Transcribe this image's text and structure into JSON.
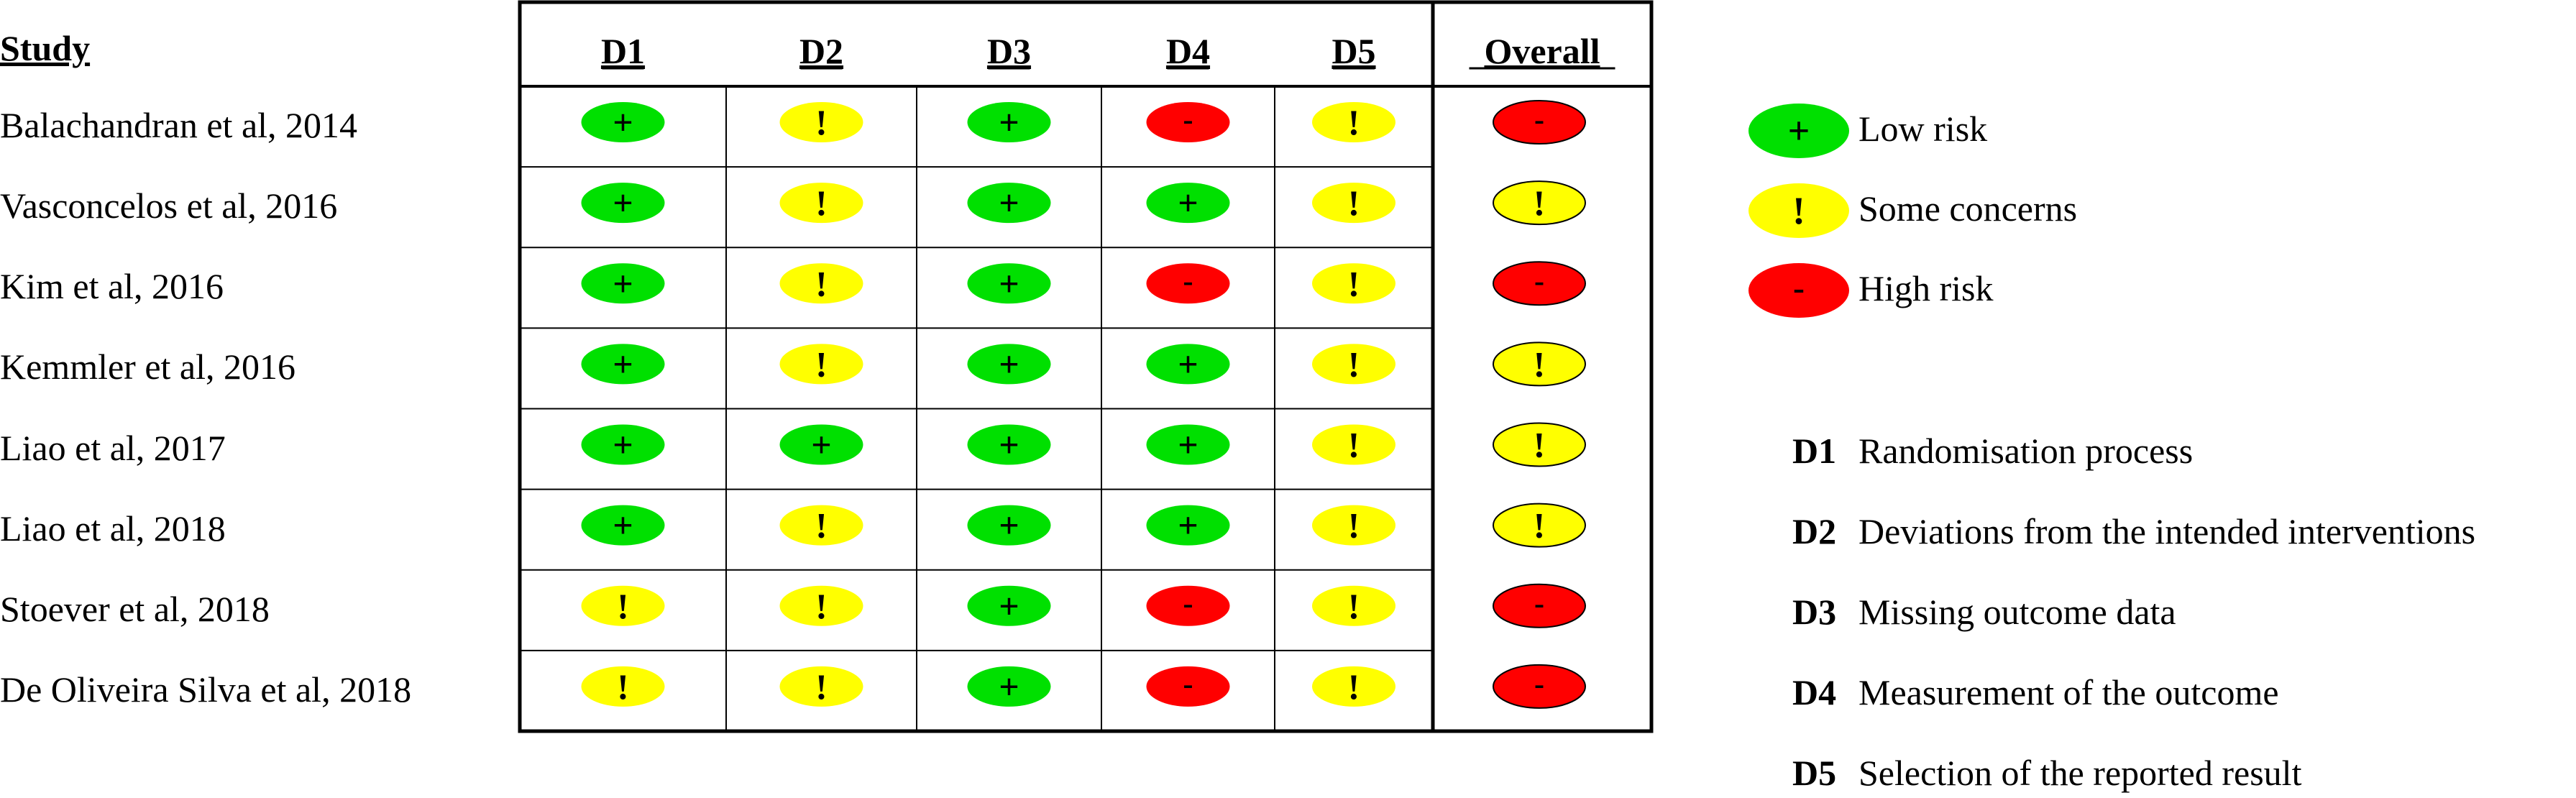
{
  "table": {
    "study_header": "Study",
    "domain_headers": [
      "D1",
      "D2",
      "D3",
      "D4",
      "D5"
    ],
    "overall_header": "Overall",
    "studies": [
      {
        "name": "Balachandran et al, 2014",
        "ratings": [
          "low",
          "some",
          "low",
          "high",
          "some"
        ],
        "overall": "high"
      },
      {
        "name": "Vasconcelos et al, 2016",
        "ratings": [
          "low",
          "some",
          "low",
          "low",
          "some"
        ],
        "overall": "some"
      },
      {
        "name": "Kim et al, 2016",
        "ratings": [
          "low",
          "some",
          "low",
          "high",
          "some"
        ],
        "overall": "high"
      },
      {
        "name": "Kemmler et al, 2016",
        "ratings": [
          "low",
          "some",
          "low",
          "low",
          "some"
        ],
        "overall": "some"
      },
      {
        "name": "Liao et al, 2017",
        "ratings": [
          "low",
          "low",
          "low",
          "low",
          "some"
        ],
        "overall": "some"
      },
      {
        "name": "Liao et al, 2018",
        "ratings": [
          "low",
          "some",
          "low",
          "low",
          "some"
        ],
        "overall": "some"
      },
      {
        "name": "Stoever et al, 2018",
        "ratings": [
          "some",
          "some",
          "low",
          "high",
          "some"
        ],
        "overall": "high"
      },
      {
        "name": "De Oliveira Silva et al, 2018",
        "ratings": [
          "some",
          "some",
          "low",
          "high",
          "some"
        ],
        "overall": "high"
      }
    ]
  },
  "judgement_legend": [
    {
      "key": "low",
      "symbol": "+",
      "label": "Low risk",
      "color": "#00e000"
    },
    {
      "key": "some",
      "symbol": "!",
      "label": "Some concerns",
      "color": "#ffff00"
    },
    {
      "key": "high",
      "symbol": "-",
      "label": "High risk",
      "color": "#ff0000"
    }
  ],
  "domain_legend": [
    {
      "code": "D1",
      "label": "Randomisation process"
    },
    {
      "code": "D2",
      "label": "Deviations from the intended interventions"
    },
    {
      "code": "D3",
      "label": "Missing outcome data"
    },
    {
      "code": "D4",
      "label": "Measurement of the outcome"
    },
    {
      "code": "D5",
      "label": "Selection of the reported result"
    }
  ]
}
